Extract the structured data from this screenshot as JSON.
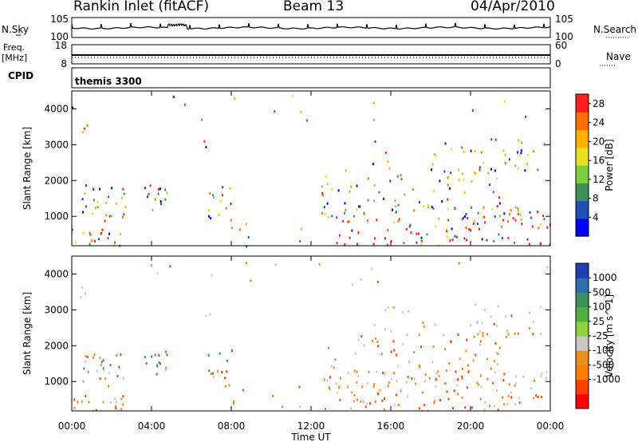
{
  "header": {
    "title": "Rankin Inlet (fitACF)",
    "beam": "Beam 13",
    "date": "04/Apr/2010"
  },
  "left_labels": {
    "nsky": "N.Sky",
    "freq_line1": "Freq.",
    "freq_line2": "[MHz]",
    "cpid": "CPID"
  },
  "right_labels": {
    "nsearch": "N.Search",
    "nave": "Nave"
  },
  "cpid_text": "themis 3300",
  "noise_axis": {
    "left_ticks": [
      "10^5",
      "10^0"
    ],
    "right_ticks": [
      "10^5",
      "10^0"
    ]
  },
  "freq_axis": {
    "left_ticks": [
      "18",
      "8"
    ],
    "right_ticks": [
      "60",
      "0"
    ]
  },
  "colors": {
    "power_scale": [
      "#0000ff",
      "#1f4fb5",
      "#3f8f5a",
      "#7fcf3f",
      "#e8e020",
      "#ffb000",
      "#ff7000",
      "#ff1f1f"
    ],
    "velocity_scale": [
      "#ff0000",
      "#ff4000",
      "#ff7f00",
      "#e89020",
      "#c8c8c8",
      "#8fd040",
      "#4fb040",
      "#3f8f5a",
      "#2f6fb0",
      "#1f3fb0"
    ]
  },
  "chart_data": [
    {
      "type": "heatmap",
      "name": "power",
      "ylabel": "Slant Range [km]",
      "xlabel": "",
      "x_ticks": [
        "00:00",
        "04:00",
        "08:00",
        "12:00",
        "16:00",
        "20:00",
        "00:00"
      ],
      "y_ticks": [
        "1000",
        "2000",
        "3000",
        "4000"
      ],
      "ylim": [
        180,
        4500
      ],
      "xlim_hours": [
        0,
        24
      ],
      "colorbar_label": "Power [dB]",
      "colorbar_ticks": [
        "4",
        "8",
        "12",
        "16",
        "20",
        "24",
        "28"
      ],
      "colorbar_range": [
        0,
        30
      ]
    },
    {
      "type": "heatmap",
      "name": "velocity",
      "ylabel": "Slant Range [km]",
      "xlabel": "Time UT",
      "x_ticks": [
        "00:00",
        "04:00",
        "08:00",
        "12:00",
        "16:00",
        "20:00",
        "00:00"
      ],
      "y_ticks": [
        "1000",
        "2000",
        "3000",
        "4000"
      ],
      "ylim": [
        180,
        4500
      ],
      "xlim_hours": [
        0,
        24
      ],
      "colorbar_label": "Velocity [m s^-1]",
      "colorbar_ticks": [
        "1000",
        "500",
        "100",
        "25",
        "-25",
        "-100",
        "-500",
        "-1000"
      ]
    }
  ]
}
